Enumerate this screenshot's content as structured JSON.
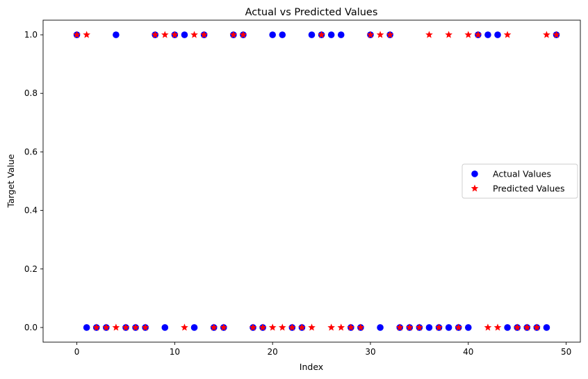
{
  "chart_data": {
    "type": "scatter",
    "title": "Actual vs Predicted Values",
    "xlabel": "Index",
    "ylabel": "Target Value",
    "xlim": [
      -3.45,
      51.45
    ],
    "ylim": [
      -0.05,
      1.05
    ],
    "xticks": [
      0,
      10,
      20,
      30,
      40,
      50
    ],
    "yticks": [
      0.0,
      0.2,
      0.4,
      0.6,
      0.8,
      1.0
    ],
    "xtick_labels": [
      "0",
      "10",
      "20",
      "30",
      "40",
      "50"
    ],
    "ytick_labels": [
      "0.0",
      "0.2",
      "0.4",
      "0.6",
      "0.8",
      "1.0"
    ],
    "grid": false,
    "legend_position": "center-right",
    "series": [
      {
        "name": "Actual Values",
        "marker": "circle",
        "color": "#0000ff",
        "x": [
          0,
          1,
          2,
          3,
          4,
          5,
          6,
          7,
          8,
          9,
          10,
          11,
          12,
          13,
          14,
          15,
          16,
          17,
          18,
          19,
          20,
          21,
          22,
          23,
          24,
          25,
          26,
          27,
          28,
          29,
          30,
          31,
          32,
          33,
          34,
          35,
          36,
          37,
          38,
          39,
          40,
          41,
          42,
          43,
          44,
          45,
          46,
          47,
          48,
          49
        ],
        "y": [
          1,
          0,
          0,
          0,
          1,
          0,
          0,
          0,
          1,
          0,
          1,
          1,
          0,
          1,
          0,
          0,
          1,
          1,
          0,
          0,
          1,
          1,
          0,
          0,
          1,
          1,
          1,
          1,
          0,
          0,
          1,
          0,
          1,
          0,
          0,
          0,
          0,
          0,
          0,
          0,
          0,
          1,
          1,
          1,
          0,
          0,
          0,
          0,
          0,
          1
        ]
      },
      {
        "name": "Predicted Values",
        "marker": "star",
        "color": "#ff0000",
        "x": [
          0,
          1,
          2,
          3,
          4,
          5,
          6,
          7,
          8,
          9,
          10,
          11,
          12,
          13,
          14,
          15,
          16,
          17,
          18,
          19,
          20,
          21,
          22,
          23,
          24,
          25,
          26,
          27,
          28,
          29,
          30,
          31,
          32,
          33,
          34,
          35,
          36,
          37,
          38,
          39,
          40,
          41,
          42,
          43,
          44,
          45,
          46,
          47,
          48,
          49
        ],
        "y": [
          1,
          1,
          0,
          0,
          0,
          0,
          0,
          0,
          1,
          1,
          1,
          0,
          1,
          1,
          0,
          0,
          1,
          1,
          0,
          0,
          0,
          0,
          0,
          0,
          0,
          1,
          0,
          0,
          0,
          0,
          1,
          1,
          1,
          0,
          0,
          0,
          1,
          0,
          1,
          0,
          1,
          1,
          0,
          0,
          1,
          0,
          0,
          0,
          1,
          1
        ]
      }
    ]
  }
}
